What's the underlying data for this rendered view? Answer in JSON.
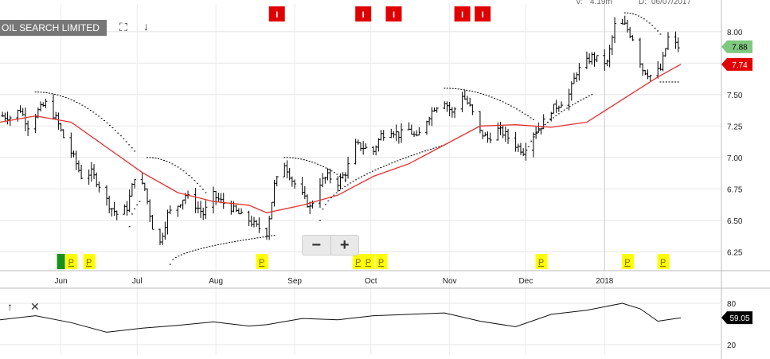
{
  "header": {
    "title": "OIL SEARCH LIMITED",
    "volume_label": "V:",
    "volume_value": "4.19m",
    "date_label": "D:",
    "date_value": "06/07/2017"
  },
  "toolbar": {
    "expand_icon": "expand-icon",
    "down_arrow_icon": "arrow-down-icon",
    "zoom_out_label": "−",
    "zoom_in_label": "+"
  },
  "indicator_controls": {
    "up_arrow_icon": "arrow-up-icon",
    "close_icon": "close-icon"
  },
  "colors": {
    "price_bars": "#000000",
    "moving_average": "#e53030",
    "parabolic_sar": "#000000",
    "last_price_badge": "#7fc87f",
    "ma_badge": "#e00000",
    "oscillator_badge": "#000000",
    "event_i": "#e00000",
    "event_p": "#ffff00",
    "event_p_text": "#7a6a00",
    "event_green": "#1a8f1a"
  },
  "chart_data": [
    {
      "type": "line",
      "subtype": "ohlc-bars-with-moving-average-and-parabolic-sar",
      "title": "OIL SEARCH LIMITED",
      "x_ticks": [
        "Jun",
        "Jul",
        "Aug",
        "Sep",
        "Oct",
        "Nov",
        "Dec",
        "2018"
      ],
      "x_range": [
        "2017-05-08",
        "2018-02-16"
      ],
      "y_ticks": [
        6.25,
        6.5,
        6.75,
        7.0,
        7.25,
        7.5,
        7.75,
        8.0
      ],
      "ylim": [
        6.1,
        8.22
      ],
      "grid": true,
      "series": [
        {
          "kind": "price",
          "points": [
            [
              "2017-05-09",
              7.33
            ],
            [
              "2017-05-12",
              7.32
            ],
            [
              "2017-05-16",
              7.38
            ],
            [
              "2017-05-19",
              7.25
            ],
            [
              "2017-05-23",
              7.37
            ],
            [
              "2017-05-26",
              7.43
            ],
            [
              "2017-05-30",
              7.31
            ],
            [
              "2017-06-02",
              7.16
            ],
            [
              "2017-06-06",
              7.0
            ],
            [
              "2017-06-09",
              6.85
            ],
            [
              "2017-06-13",
              6.88
            ],
            [
              "2017-06-16",
              6.78
            ],
            [
              "2017-06-20",
              6.62
            ],
            [
              "2017-06-23",
              6.55
            ],
            [
              "2017-06-27",
              6.6
            ],
            [
              "2017-06-30",
              6.85
            ],
            [
              "2017-07-04",
              6.75
            ],
            [
              "2017-07-07",
              6.45
            ],
            [
              "2017-07-10",
              6.32
            ],
            [
              "2017-07-13",
              6.55
            ],
            [
              "2017-07-17",
              6.62
            ],
            [
              "2017-07-20",
              6.7
            ],
            [
              "2017-07-24",
              6.62
            ],
            [
              "2017-07-27",
              6.55
            ],
            [
              "2017-07-31",
              6.7
            ],
            [
              "2017-08-03",
              6.65
            ],
            [
              "2017-08-07",
              6.6
            ],
            [
              "2017-08-10",
              6.55
            ],
            [
              "2017-08-14",
              6.5
            ],
            [
              "2017-08-17",
              6.45
            ],
            [
              "2017-08-21",
              6.4
            ],
            [
              "2017-08-24",
              6.78
            ],
            [
              "2017-08-28",
              6.95
            ],
            [
              "2017-08-31",
              6.82
            ],
            [
              "2017-09-04",
              6.7
            ],
            [
              "2017-09-07",
              6.6
            ],
            [
              "2017-09-11",
              6.8
            ],
            [
              "2017-09-14",
              6.85
            ],
            [
              "2017-09-18",
              6.8
            ],
            [
              "2017-09-21",
              6.88
            ],
            [
              "2017-09-25",
              7.1
            ],
            [
              "2017-09-28",
              7.08
            ],
            [
              "2017-10-02",
              7.05
            ],
            [
              "2017-10-05",
              7.18
            ],
            [
              "2017-10-09",
              7.22
            ],
            [
              "2017-10-12",
              7.18
            ],
            [
              "2017-10-16",
              7.22
            ],
            [
              "2017-10-19",
              7.15
            ],
            [
              "2017-10-23",
              7.3
            ],
            [
              "2017-10-26",
              7.4
            ],
            [
              "2017-10-30",
              7.45
            ],
            [
              "2017-11-02",
              7.35
            ],
            [
              "2017-11-06",
              7.5
            ],
            [
              "2017-11-09",
              7.4
            ],
            [
              "2017-11-13",
              7.2
            ],
            [
              "2017-11-16",
              7.15
            ],
            [
              "2017-11-20",
              7.22
            ],
            [
              "2017-11-23",
              7.18
            ],
            [
              "2017-11-27",
              7.1
            ],
            [
              "2017-11-30",
              7.05
            ],
            [
              "2017-12-04",
              7.2
            ],
            [
              "2017-12-07",
              7.25
            ],
            [
              "2017-12-11",
              7.38
            ],
            [
              "2017-12-14",
              7.42
            ],
            [
              "2017-12-18",
              7.5
            ],
            [
              "2017-12-21",
              7.68
            ],
            [
              "2017-12-27",
              7.8
            ],
            [
              "2018-01-02",
              7.75
            ],
            [
              "2018-01-05",
              8.05
            ],
            [
              "2018-01-09",
              8.05
            ],
            [
              "2018-01-12",
              7.95
            ],
            [
              "2018-01-16",
              7.7
            ],
            [
              "2018-01-19",
              7.65
            ],
            [
              "2018-01-23",
              7.7
            ],
            [
              "2018-01-26",
              7.95
            ],
            [
              "2018-01-30",
              7.88
            ]
          ]
        },
        {
          "kind": "moving-average",
          "points": [
            [
              "2017-05-08",
              7.28
            ],
            [
              "2017-05-22",
              7.33
            ],
            [
              "2017-06-05",
              7.28
            ],
            [
              "2017-06-19",
              7.08
            ],
            [
              "2017-07-03",
              6.88
            ],
            [
              "2017-07-17",
              6.72
            ],
            [
              "2017-07-31",
              6.65
            ],
            [
              "2017-08-14",
              6.62
            ],
            [
              "2017-08-21",
              6.56
            ],
            [
              "2017-09-04",
              6.62
            ],
            [
              "2017-09-18",
              6.7
            ],
            [
              "2017-10-02",
              6.85
            ],
            [
              "2017-10-16",
              6.95
            ],
            [
              "2017-10-30",
              7.1
            ],
            [
              "2017-11-13",
              7.25
            ],
            [
              "2017-11-27",
              7.26
            ],
            [
              "2017-12-11",
              7.24
            ],
            [
              "2017-12-25",
              7.28
            ],
            [
              "2018-01-08",
              7.46
            ],
            [
              "2018-01-22",
              7.64
            ],
            [
              "2018-01-31",
              7.74
            ]
          ]
        },
        {
          "kind": "parabolic-sar",
          "segments": [
            {
              "from": [
                "2017-05-22",
                7.52
              ],
              "to": [
                "2017-06-30",
                7.05
              ],
              "position": "above"
            },
            {
              "from": [
                "2017-06-28",
                6.45
              ],
              "to": [
                "2017-07-02",
                6.65
              ],
              "position": "below"
            },
            {
              "from": [
                "2017-07-05",
                7.0
              ],
              "to": [
                "2017-07-28",
                6.72
              ],
              "position": "above"
            },
            {
              "from": [
                "2017-07-14",
                6.15
              ],
              "to": [
                "2017-08-24",
                6.38
              ],
              "position": "below"
            },
            {
              "from": [
                "2017-08-28",
                7.0
              ],
              "to": [
                "2017-09-21",
                6.82
              ],
              "position": "above"
            },
            {
              "from": [
                "2017-09-11",
                6.5
              ],
              "to": [
                "2017-10-30",
                7.1
              ],
              "position": "below"
            },
            {
              "from": [
                "2017-10-30",
                7.55
              ],
              "to": [
                "2017-12-04",
                7.3
              ],
              "position": "above"
            },
            {
              "from": [
                "2017-12-01",
                6.98
              ],
              "to": [
                "2017-12-27",
                7.5
              ],
              "position": "below"
            },
            {
              "from": [
                "2018-01-09",
                8.15
              ],
              "to": [
                "2018-01-23",
                7.98
              ],
              "position": "above"
            },
            {
              "from": [
                "2018-01-23",
                7.6
              ],
              "to": [
                "2018-01-30",
                7.6
              ],
              "position": "below"
            }
          ]
        }
      ],
      "price_labels": [
        {
          "value": 7.88,
          "text": "7.88",
          "badge": "last-price"
        },
        {
          "value": 7.74,
          "text": "7.74",
          "badge": "moving-average"
        }
      ],
      "event_markers": {
        "top": [
          {
            "date": "2017-08-25",
            "label": "I"
          },
          {
            "date": "2017-09-28",
            "label": "I"
          },
          {
            "date": "2017-10-10",
            "label": "I"
          },
          {
            "date": "2017-11-06",
            "label": "I"
          },
          {
            "date": "2017-11-14",
            "label": "I"
          }
        ],
        "bottom": [
          {
            "date": "2017-06-01",
            "label": "",
            "style": "green"
          },
          {
            "date": "2017-06-05",
            "label": "P"
          },
          {
            "date": "2017-06-12",
            "label": "P"
          },
          {
            "date": "2017-08-19",
            "label": "P"
          },
          {
            "date": "2017-09-26",
            "label": "P"
          },
          {
            "date": "2017-09-30",
            "label": "P"
          },
          {
            "date": "2017-10-05",
            "label": "P"
          },
          {
            "date": "2017-12-07",
            "label": "P"
          },
          {
            "date": "2018-01-10",
            "label": "P"
          },
          {
            "date": "2018-01-24",
            "label": "P"
          }
        ]
      }
    },
    {
      "type": "line",
      "subtype": "oscillator",
      "y_ticks": [
        80,
        20
      ],
      "ylim": [
        5,
        95
      ],
      "grid": true,
      "last_value": 59.05,
      "last_value_text": "59.05",
      "series": [
        {
          "points": [
            [
              "2017-05-08",
              56
            ],
            [
              "2017-05-22",
              62
            ],
            [
              "2017-06-05",
              52
            ],
            [
              "2017-06-19",
              38
            ],
            [
              "2017-07-03",
              44
            ],
            [
              "2017-07-17",
              48
            ],
            [
              "2017-07-31",
              53
            ],
            [
              "2017-08-14",
              47
            ],
            [
              "2017-08-21",
              49
            ],
            [
              "2017-09-04",
              58
            ],
            [
              "2017-09-18",
              56
            ],
            [
              "2017-10-02",
              62
            ],
            [
              "2017-10-16",
              64
            ],
            [
              "2017-10-30",
              66
            ],
            [
              "2017-11-13",
              54
            ],
            [
              "2017-11-27",
              46
            ],
            [
              "2017-12-11",
              64
            ],
            [
              "2017-12-25",
              70
            ],
            [
              "2018-01-08",
              80
            ],
            [
              "2018-01-15",
              72
            ],
            [
              "2018-01-22",
              54
            ],
            [
              "2018-01-31",
              59
            ]
          ]
        }
      ]
    }
  ]
}
